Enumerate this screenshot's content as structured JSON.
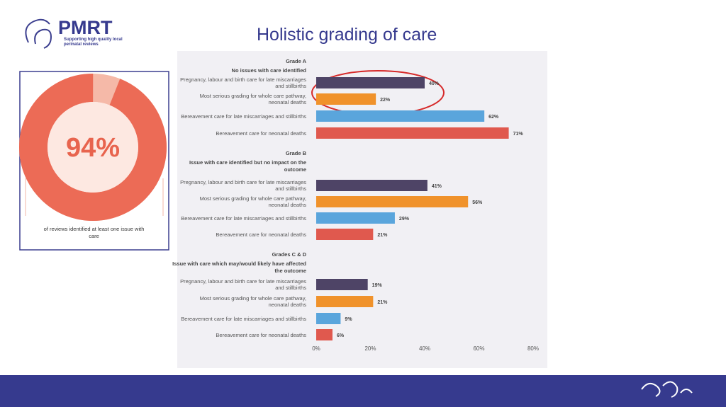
{
  "header": {
    "logo": "PMRT",
    "tagline": "Supporting high quality local perinatal reviews"
  },
  "title": "Holistic grading of care",
  "chart_data": [
    {
      "type": "donut",
      "values": [
        94
      ],
      "value_labels": [
        "94%"
      ],
      "color": "#ec6b56",
      "caption": "of reviews identified at least one issue with care"
    },
    {
      "type": "hbar",
      "groups": [
        {
          "title": "Grade A",
          "subtitle": "No issues with care identified"
        },
        {
          "title": "Grade B",
          "subtitle": "Issue with care identified but no impact on the outcome"
        },
        {
          "title": "Grades C & D",
          "subtitle": "Issue with care which may/would likely have affected the outcome"
        }
      ],
      "categories": [
        "Pregnancy, labour and birth care for late miscarriages and stillbirths",
        "Most serious grading for whole care pathway, neonatal deaths",
        "Bereavement care for late miscarriages and stillbirths",
        "Bereavement care for neonatal deaths",
        "Pregnancy, labour and birth care for late miscarriages and stillbirths",
        "Most serious grading for whole care pathway, neonatal deaths",
        "Bereavement care for late miscarriages and stillbirths",
        "Bereavement care for neonatal deaths",
        "Pregnancy, labour and birth care for late miscarriages and stillbirths",
        "Most serious grading for whole care pathway, neonatal deaths",
        "Bereavement care for late miscarriages and stillbirths",
        "Bereavement care for neonatal deaths"
      ],
      "values": [
        40,
        22,
        62,
        71,
        41,
        56,
        29,
        21,
        19,
        21,
        9,
        6
      ],
      "value_labels": [
        "40%",
        "22%",
        "62%",
        "71%",
        "41%",
        "56%",
        "29%",
        "21%",
        "19%",
        "21%",
        "9%",
        "6%"
      ],
      "colors": [
        "#4e4466",
        "#f0922b",
        "#5aa5dc",
        "#e0594e"
      ],
      "xlim": [
        0,
        80
      ],
      "xticks": [
        {
          "value": 0,
          "label": "0%"
        },
        {
          "value": 20,
          "label": "20%"
        },
        {
          "value": 40,
          "label": "40%"
        },
        {
          "value": 60,
          "label": "60%"
        },
        {
          "value": 80,
          "label": "80%"
        }
      ],
      "grid": false
    }
  ]
}
